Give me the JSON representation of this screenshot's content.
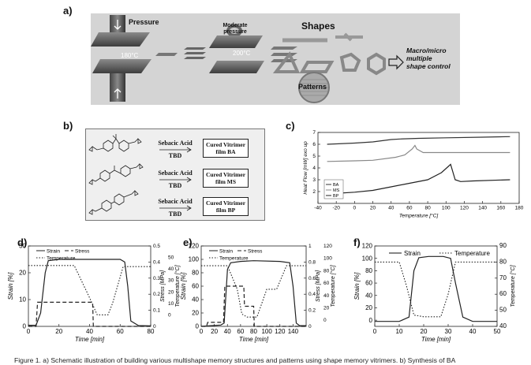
{
  "panel_labels": {
    "a": "a)",
    "b": "b)",
    "c": "c)",
    "d": "d)",
    "e": "e)",
    "f": "f)"
  },
  "panel_a": {
    "pressure": "Pressure",
    "temp1": "180°C",
    "moderate_pressure": "Moderate\npressure",
    "temp2": "200°C",
    "shapes": "Shapes",
    "patterns": "Patterns",
    "result": "Macro/micro\nmultiple\nshape control"
  },
  "panel_b": {
    "rows": [
      {
        "reagent1": "Sebacic Acid",
        "reagent2": "TBD",
        "product": "Cured Vitrimer film BA"
      },
      {
        "reagent1": "Sebacic Acid",
        "reagent2": "TBD",
        "product": "Cured Vitrimer film MS"
      },
      {
        "reagent1": "Sebacic Acid",
        "reagent2": "TBD",
        "product": "Cured Vitrimer film BP"
      }
    ]
  },
  "chart_data": [
    {
      "panel": "c",
      "type": "line",
      "xlabel": "Temperature [°C]",
      "ylabel": "Heat Flow [mW] exo up",
      "xlim": [
        -40,
        180
      ],
      "ylim": [
        1,
        7
      ],
      "xticks": [
        -40,
        -20,
        0,
        20,
        40,
        60,
        80,
        100,
        120,
        140,
        160,
        180
      ],
      "yticks": [
        2,
        3,
        4,
        5,
        6,
        7
      ],
      "legend_position": "bottom-left",
      "series": [
        {
          "name": "BA",
          "color": "#333333",
          "x": [
            -30,
            0,
            20,
            40,
            50,
            70,
            100,
            140,
            170
          ],
          "y": [
            6.0,
            6.1,
            6.2,
            6.4,
            6.45,
            6.5,
            6.55,
            6.6,
            6.65
          ]
        },
        {
          "name": "MS",
          "color": "#888888",
          "x": [
            -30,
            0,
            20,
            45,
            55,
            63,
            66,
            68,
            75,
            100,
            140,
            170
          ],
          "y": [
            4.55,
            4.6,
            4.65,
            4.9,
            5.1,
            5.6,
            5.9,
            5.6,
            5.3,
            5.3,
            5.3,
            5.3
          ]
        },
        {
          "name": "BP",
          "color": "#222222",
          "x": [
            -30,
            0,
            20,
            40,
            60,
            80,
            95,
            105,
            110,
            116,
            130,
            170
          ],
          "y": [
            1.8,
            1.95,
            2.1,
            2.4,
            2.7,
            3.0,
            3.6,
            4.3,
            3.0,
            2.85,
            2.9,
            3.0
          ]
        }
      ]
    },
    {
      "panel": "d",
      "type": "line",
      "xlabel": "Time [min]",
      "ylabel": "Strain [%]",
      "y2label": "Stress [MPa]",
      "y3label": "Temperature [°C]",
      "xlim": [
        0,
        80
      ],
      "ylim": [
        0,
        30
      ],
      "y2lim": [
        0,
        0.5
      ],
      "y3lim": [
        -10,
        60
      ],
      "xticks": [
        0,
        20,
        40,
        60,
        80
      ],
      "yticks": [
        0,
        10,
        20,
        30
      ],
      "y2ticks": [
        0.0,
        0.1,
        0.2,
        0.3,
        0.4,
        0.5
      ],
      "y3ticks": [
        0,
        10,
        20,
        30,
        40,
        50
      ],
      "legend_position": "top-left",
      "series": [
        {
          "name": "Strain",
          "axis": "y",
          "dash": "solid",
          "x": [
            0,
            5,
            8,
            11,
            13,
            20,
            40,
            55,
            60,
            63,
            65,
            67,
            72,
            80
          ],
          "y": [
            0.4,
            0.4,
            5,
            20,
            24.5,
            25,
            25,
            25,
            25,
            24,
            15,
            2,
            0.3,
            0.2
          ]
        },
        {
          "name": "Stress",
          "axis": "y2",
          "dash": "dash",
          "x": [
            0,
            5,
            6,
            42,
            42.5,
            80
          ],
          "y": [
            0.0,
            0.0,
            0.15,
            0.15,
            0.0,
            0.0
          ]
        },
        {
          "name": "Temperature",
          "axis": "y3",
          "dash": "dot",
          "x": [
            0,
            5,
            12,
            20,
            30,
            40,
            45,
            52,
            55,
            62,
            80
          ],
          "y": [
            43,
            43,
            43,
            43,
            43,
            15,
            0,
            0,
            10,
            42,
            42
          ]
        }
      ]
    },
    {
      "panel": "e",
      "type": "line",
      "xlabel": "Time [min]",
      "ylabel": "Strain [%]",
      "y2label": "Stress [MPa]",
      "y3label": "Temperature [°C]",
      "xlim": [
        0,
        160
      ],
      "ylim": [
        0,
        120
      ],
      "y2lim": [
        0,
        1.0
      ],
      "y3lim": [
        -10,
        120
      ],
      "xticks": [
        0,
        20,
        40,
        60,
        80,
        100,
        120,
        140
      ],
      "yticks": [
        0,
        20,
        40,
        60,
        80,
        100,
        120
      ],
      "y2ticks": [
        0.0,
        0.2,
        0.4,
        0.6,
        0.8,
        1.0
      ],
      "y3ticks": [
        0,
        20,
        40,
        60,
        80,
        100,
        120
      ],
      "legend_position": "top-left",
      "series": [
        {
          "name": "Strain",
          "axis": "y",
          "dash": "solid",
          "x": [
            0,
            15,
            30,
            35,
            40,
            45,
            60,
            80,
            120,
            135,
            140,
            145,
            150,
            160
          ],
          "y": [
            0,
            1,
            2,
            5,
            85,
            95,
            97,
            98,
            97,
            95,
            60,
            5,
            1,
            1
          ]
        },
        {
          "name": "Stress",
          "axis": "y2",
          "dash": "dash",
          "x": [
            0,
            8,
            10,
            34,
            36,
            65,
            66,
            80,
            81,
            160
          ],
          "y": [
            0.0,
            0.0,
            0.05,
            0.05,
            0.5,
            0.5,
            0.25,
            0.25,
            0.0,
            0.0
          ]
        },
        {
          "name": "Temperature",
          "axis": "y3",
          "dash": "dot",
          "x": [
            0,
            10,
            20,
            30,
            40,
            55,
            62,
            70,
            85,
            100,
            115,
            130,
            145,
            160
          ],
          "y": [
            88,
            88,
            88,
            88,
            88,
            50,
            10,
            5,
            5,
            50,
            50,
            88,
            88,
            88
          ]
        }
      ]
    },
    {
      "panel": "f",
      "type": "line",
      "xlabel": "Time [min]",
      "ylabel": "Strain [%]",
      "y2label": "Temperature [°C]",
      "xlim": [
        0,
        50
      ],
      "ylim": [
        -10,
        120
      ],
      "y2lim": [
        40,
        90
      ],
      "xticks": [
        0,
        10,
        20,
        30,
        40,
        50
      ],
      "yticks": [
        0,
        20,
        40,
        60,
        80,
        100,
        120
      ],
      "y2ticks": [
        40,
        50,
        60,
        70,
        80,
        90
      ],
      "legend_position": "top",
      "series": [
        {
          "name": "Strain",
          "axis": "y",
          "dash": "solid",
          "x": [
            0,
            10,
            14,
            16,
            18,
            22,
            28,
            31,
            33,
            36,
            40,
            50
          ],
          "y": [
            -2,
            -2,
            5,
            80,
            101,
            103,
            103,
            100,
            60,
            5,
            -2,
            -2
          ]
        },
        {
          "name": "Temperature",
          "axis": "y2",
          "dash": "dot",
          "x": [
            0,
            10,
            13,
            16,
            20,
            27,
            30,
            33,
            35,
            50
          ],
          "y": [
            80,
            80,
            65,
            47,
            46,
            46,
            60,
            80,
            80,
            80
          ]
        }
      ]
    }
  ],
  "caption": "Figure 1.  a) Schematic illustration of building various multishape memory structures and patterns using shape memory vitrimers. b) Synthesis of BA"
}
